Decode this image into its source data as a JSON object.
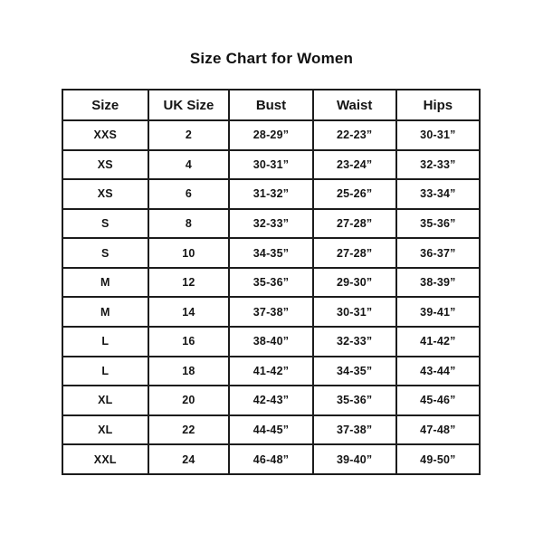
{
  "page": {
    "title": "Size Chart for Women"
  },
  "colors": {
    "background": "#ffffff",
    "text": "#141414",
    "border": "#1c1c1c"
  },
  "chart_data": {
    "type": "table",
    "title": "Size Chart for Women",
    "columns": [
      "Size",
      "UK Size",
      "Bust",
      "Waist",
      "Hips"
    ],
    "rows": [
      [
        "XXS",
        "2",
        "28-29”",
        "22-23”",
        "30-31”"
      ],
      [
        "XS",
        "4",
        "30-31”",
        "23-24”",
        "32-33”"
      ],
      [
        "XS",
        "6",
        "31-32”",
        "25-26”",
        "33-34”"
      ],
      [
        "S",
        "8",
        "32-33”",
        "27-28”",
        "35-36”"
      ],
      [
        "S",
        "10",
        "34-35”",
        "27-28”",
        "36-37”"
      ],
      [
        "M",
        "12",
        "35-36”",
        "29-30”",
        "38-39”"
      ],
      [
        "M",
        "14",
        "37-38”",
        "30-31”",
        "39-41”"
      ],
      [
        "L",
        "16",
        "38-40”",
        "32-33”",
        "41-42”"
      ],
      [
        "L",
        "18",
        "41-42”",
        "34-35”",
        "43-44”"
      ],
      [
        "XL",
        "20",
        "42-43”",
        "35-36”",
        "45-46”"
      ],
      [
        "XL",
        "22",
        "44-45”",
        "37-38”",
        "47-48”"
      ],
      [
        "XXL",
        "24",
        "46-48”",
        "39-40”",
        "49-50”"
      ]
    ]
  }
}
